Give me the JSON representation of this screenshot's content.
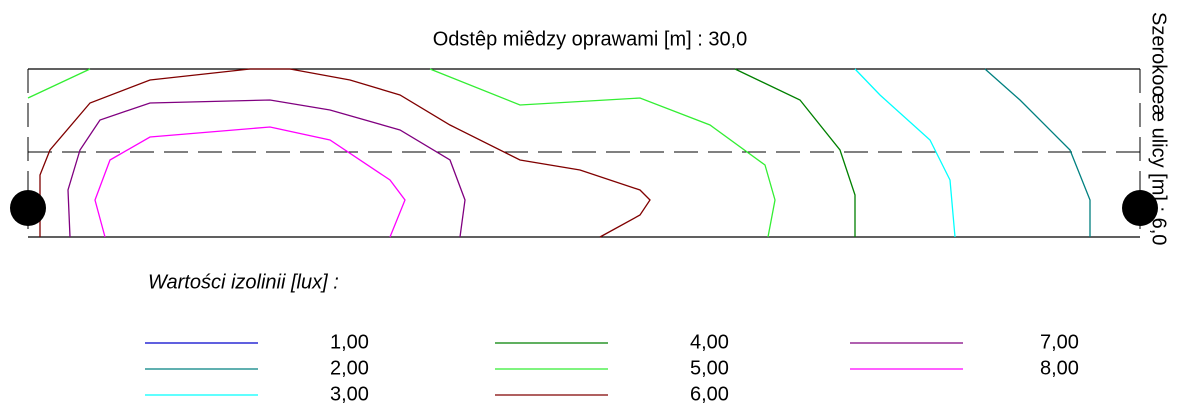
{
  "title": "Odstêp miêdzy oprawami [m] : 30,0",
  "side_label": "Szerokoœæ ulicy [m] : 6,0",
  "legend": {
    "title": "Wartości izolinii [lux] :",
    "items": [
      {
        "label": "1,00",
        "color": "#0000cc"
      },
      {
        "label": "2,00",
        "color": "#008080"
      },
      {
        "label": "3,00",
        "color": "#00ffff"
      },
      {
        "label": "4,00",
        "color": "#008000"
      },
      {
        "label": "5,00",
        "color": "#33ee33"
      },
      {
        "label": "6,00",
        "color": "#800000"
      },
      {
        "label": "7,00",
        "color": "#800080"
      },
      {
        "label": "8,00",
        "color": "#ff00ff"
      }
    ]
  }
}
